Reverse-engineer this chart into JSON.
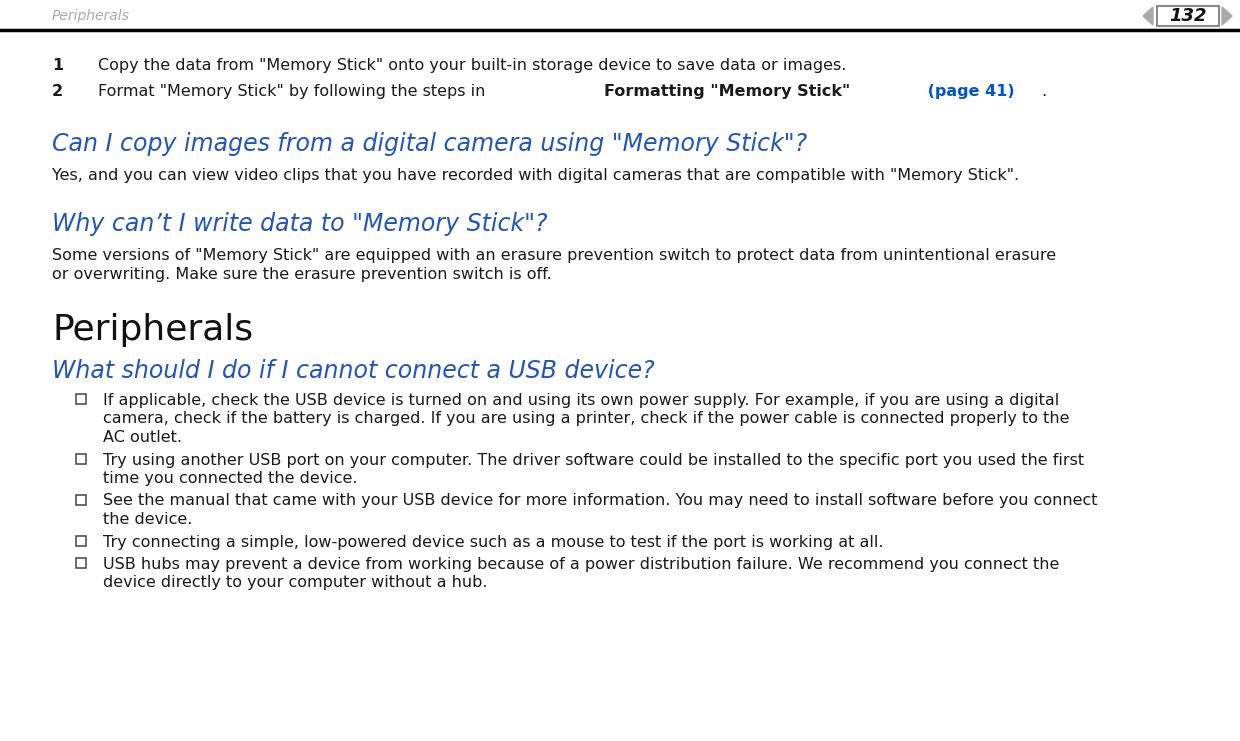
{
  "bg_color": "#ffffff",
  "header_text": "Peripherals",
  "header_color": "#aaaaaa",
  "page_number": "132",
  "black_color": "#1a1a1a",
  "dark_color": "#111111",
  "link_color": "#0055cc",
  "section_heading_color": "#2255bb",
  "item1_num": "1",
  "item1_text": "Copy the data from \"Memory Stick\" onto your built-in storage device to save data or images.",
  "item2_num": "2",
  "item2_before": "Format \"Memory Stick\" by following the steps in ",
  "item2_bold": "Formatting \"Memory Stick\"",
  "item2_link": " (page 41)",
  "item2_after": ".",
  "q1_heading": "Can I copy images from a digital camera using \"Memory Stick\"?",
  "q1_body": "Yes, and you can view video clips that you have recorded with digital cameras that are compatible with \"Memory Stick\".",
  "q2_heading": "Why can’t I write data to \"Memory Stick\"?",
  "q2_body_line1": "Some versions of \"Memory Stick\" are equipped with an erasure prevention switch to protect data from unintentional erasure",
  "q2_body_line2": "or overwriting. Make sure the erasure prevention switch is off.",
  "section2_heading": "Peripherals",
  "q3_heading": "What should I do if I cannot connect a USB device?",
  "bullet1_line1": "If applicable, check the USB device is turned on and using its own power supply. For example, if you are using a digital",
  "bullet1_line2": "camera, check if the battery is charged. If you are using a printer, check if the power cable is connected properly to the",
  "bullet1_line3": "AC outlet.",
  "bullet2_line1": "Try using another USB port on your computer. The driver software could be installed to the specific port you used the first",
  "bullet2_line2": "time you connected the device.",
  "bullet3_line1": "See the manual that came with your USB device for more information. You may need to install software before you connect",
  "bullet3_line2": "the device.",
  "bullet4": "Try connecting a simple, low-powered device such as a mouse to test if the port is working at all.",
  "bullet5_line1": "USB hubs may prevent a device from working because of a power distribution failure. We recommend you connect the",
  "bullet5_line2": "device directly to your computer without a hub."
}
